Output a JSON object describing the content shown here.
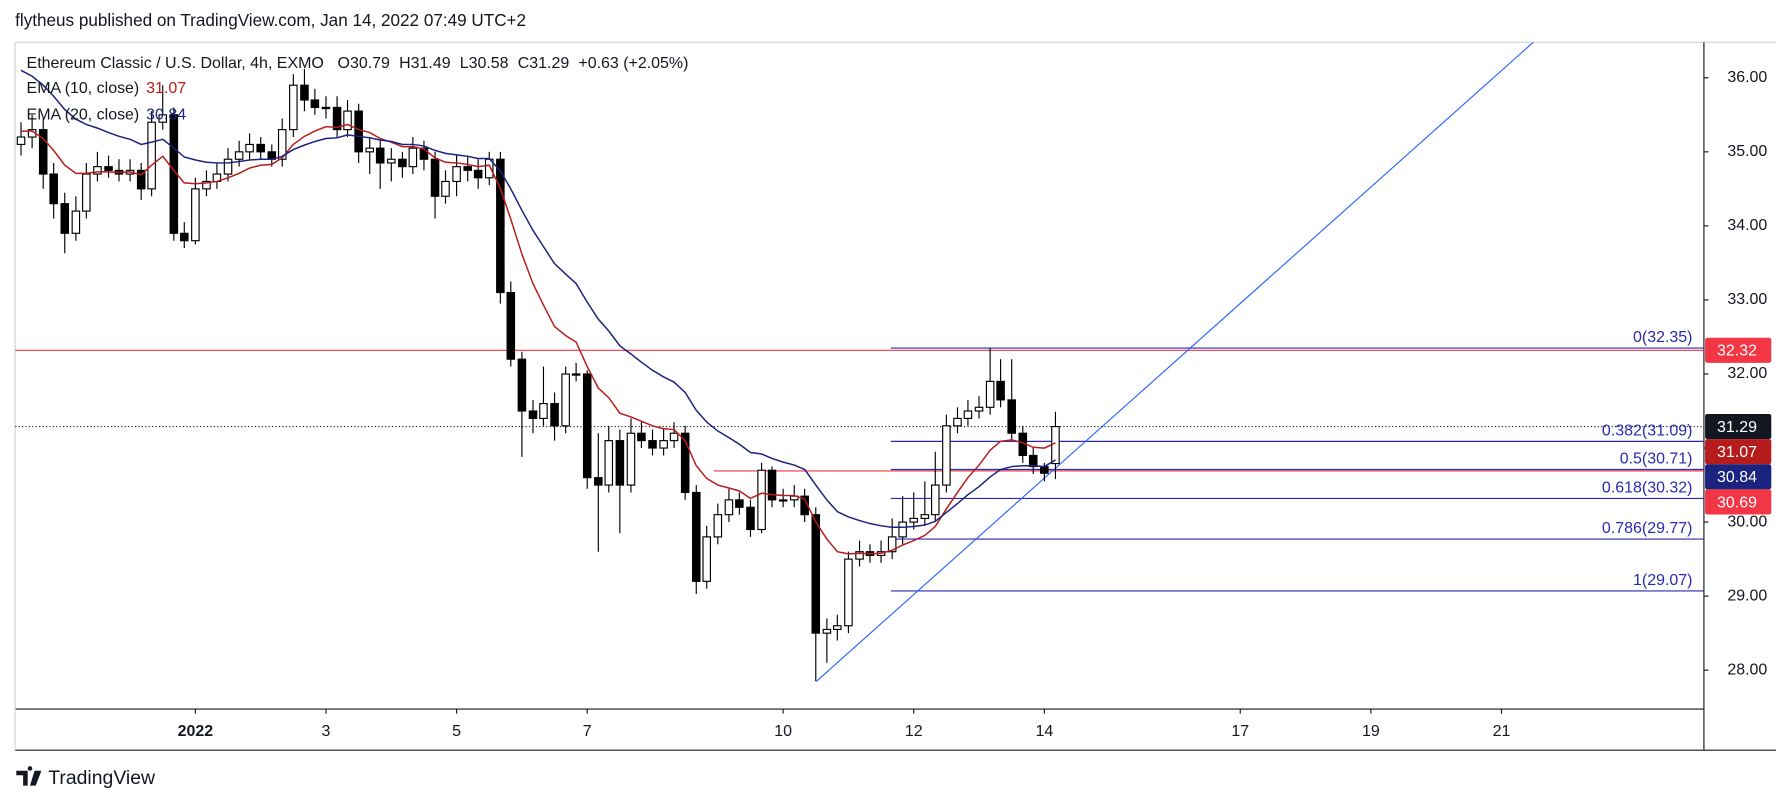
{
  "header": {
    "text": "flytheus published on TradingView.com, Jan 14, 2022 07:49 UTC+2"
  },
  "footer": {
    "brand": "TradingView"
  },
  "chart_data": {
    "type": "candlestick",
    "title": "Ethereum Classic / U.S. Dollar, 4h, EXMO",
    "ohlc_letters": [
      "O",
      "H",
      "L",
      "C"
    ],
    "change": "+0.63 (+2.05%)",
    "up_color": "#ffffff",
    "down_color": "#000000",
    "wick_color": "#000000",
    "last_price_color": "#131722",
    "x": [
      -1.67,
      -1.5,
      -1.33,
      -1.17,
      -1,
      -0.83,
      -0.67,
      -0.5,
      -0.33,
      -0.17,
      0,
      0.17,
      0.33,
      0.5,
      0.67,
      0.83,
      1,
      1.17,
      1.33,
      1.5,
      1.67,
      1.83,
      2,
      2.17,
      2.33,
      2.5,
      2.67,
      2.83,
      3,
      3.17,
      3.33,
      3.5,
      3.67,
      3.83,
      4,
      4.17,
      4.33,
      4.5,
      4.67,
      4.83,
      5,
      5.17,
      5.33,
      5.5,
      5.67,
      5.83,
      6,
      6.17,
      6.33,
      6.5,
      6.67,
      6.83,
      7,
      7.17,
      7.33,
      7.5,
      7.67,
      7.83,
      8,
      8.17,
      8.33,
      8.5,
      8.67,
      8.83,
      9,
      9.17,
      9.33,
      9.5,
      9.67,
      9.83,
      10,
      10.17,
      10.33,
      10.5,
      10.67,
      10.83,
      11,
      11.17,
      11.33,
      11.5,
      11.67,
      11.83,
      12,
      12.17,
      12.33,
      12.5,
      12.67,
      12.83,
      13,
      13.17,
      13.33,
      13.5,
      13.67,
      13.83,
      14,
      14.17
    ],
    "open": [
      35.1,
      35.2,
      35.3,
      34.7,
      34.3,
      33.9,
      34.2,
      34.7,
      34.8,
      34.75,
      34.7,
      34.75,
      34.5,
      35.4,
      35.5,
      33.9,
      33.8,
      34.5,
      34.6,
      34.7,
      34.9,
      35.0,
      35.1,
      35.0,
      34.9,
      35.3,
      35.9,
      35.7,
      35.6,
      35.6,
      35.3,
      35.55,
      35.0,
      35.05,
      34.85,
      34.9,
      34.8,
      35.05,
      34.9,
      34.4,
      34.6,
      34.8,
      34.75,
      34.65,
      34.9,
      33.1,
      32.2,
      31.5,
      31.4,
      31.6,
      31.3,
      32.0,
      32.0,
      30.6,
      30.5,
      31.1,
      30.5,
      31.2,
      31.1,
      31.0,
      31.1,
      31.2,
      30.4,
      29.2,
      29.8,
      30.1,
      30.3,
      30.2,
      29.9,
      30.7,
      30.3,
      30.3,
      30.35,
      30.1,
      28.5,
      28.55,
      28.6,
      29.5,
      29.6,
      29.55,
      29.6,
      29.8,
      30.0,
      30.05,
      30.1,
      30.5,
      31.3,
      31.4,
      31.5,
      31.55,
      31.9,
      31.65,
      31.2,
      30.9,
      30.75,
      30.79
    ],
    "high": [
      35.4,
      35.5,
      35.45,
      34.85,
      34.45,
      34.4,
      34.85,
      35.0,
      34.95,
      34.9,
      34.9,
      34.85,
      35.55,
      35.9,
      35.6,
      34.05,
      34.65,
      34.75,
      34.85,
      35.05,
      35.15,
      35.25,
      35.2,
      35.1,
      35.45,
      36.05,
      36.12,
      35.85,
      35.75,
      35.75,
      35.7,
      35.65,
      35.2,
      35.15,
      35.05,
      35.0,
      35.2,
      35.15,
      35.0,
      34.75,
      34.95,
      34.95,
      34.9,
      35.0,
      35.0,
      33.25,
      32.3,
      31.65,
      32.1,
      31.75,
      32.1,
      32.15,
      32.05,
      31.2,
      31.3,
      31.25,
      31.4,
      31.35,
      31.25,
      31.25,
      31.35,
      31.3,
      30.5,
      29.95,
      30.25,
      30.45,
      30.4,
      30.3,
      30.8,
      30.75,
      30.45,
      30.5,
      30.45,
      30.2,
      28.7,
      28.75,
      29.6,
      29.75,
      29.7,
      29.75,
      30.05,
      30.35,
      30.4,
      30.55,
      30.95,
      31.45,
      31.55,
      31.65,
      31.7,
      32.35,
      32.2,
      32.2,
      31.3,
      31.0,
      30.8,
      31.49
    ],
    "low": [
      34.95,
      35.05,
      34.5,
      34.1,
      33.63,
      33.8,
      34.1,
      34.6,
      34.65,
      34.6,
      34.6,
      34.35,
      34.4,
      35.3,
      33.8,
      33.7,
      33.75,
      34.4,
      34.5,
      34.6,
      34.8,
      34.9,
      34.9,
      34.8,
      34.8,
      35.2,
      35.55,
      35.5,
      35.45,
      35.2,
      35.2,
      34.85,
      34.7,
      34.5,
      34.6,
      34.65,
      34.7,
      34.75,
      34.1,
      34.3,
      34.4,
      34.6,
      34.5,
      34.55,
      32.95,
      32.1,
      30.88,
      31.2,
      31.3,
      31.1,
      31.2,
      31.9,
      30.45,
      29.6,
      30.4,
      29.85,
      30.4,
      31.0,
      30.9,
      30.9,
      31.0,
      30.3,
      29.03,
      29.1,
      29.7,
      30.0,
      30.1,
      29.8,
      29.85,
      30.2,
      30.2,
      30.2,
      30.0,
      27.85,
      28.1,
      28.4,
      28.5,
      29.4,
      29.45,
      29.45,
      29.5,
      29.7,
      29.9,
      29.95,
      30.0,
      30.4,
      31.2,
      31.3,
      31.4,
      31.45,
      31.55,
      31.1,
      30.8,
      30.65,
      30.55,
      30.58
    ],
    "close": [
      35.2,
      35.3,
      34.7,
      34.3,
      33.9,
      34.2,
      34.7,
      34.8,
      34.75,
      34.7,
      34.75,
      34.5,
      35.4,
      35.5,
      33.9,
      33.8,
      34.5,
      34.6,
      34.7,
      34.9,
      35.0,
      35.1,
      35.0,
      34.9,
      35.3,
      35.9,
      35.7,
      35.6,
      35.6,
      35.3,
      35.55,
      35.0,
      35.05,
      34.85,
      34.9,
      34.8,
      35.05,
      34.9,
      34.4,
      34.6,
      34.8,
      34.75,
      34.65,
      34.9,
      33.1,
      32.2,
      31.5,
      31.4,
      31.6,
      31.3,
      32.0,
      32.0,
      30.6,
      30.5,
      31.1,
      30.5,
      31.2,
      31.1,
      31.0,
      31.1,
      31.2,
      30.4,
      29.2,
      29.8,
      30.1,
      30.3,
      30.2,
      29.9,
      30.7,
      30.3,
      30.3,
      30.35,
      30.1,
      28.5,
      28.55,
      28.6,
      29.5,
      29.6,
      29.55,
      29.6,
      29.8,
      30.0,
      30.05,
      30.1,
      30.5,
      31.3,
      31.4,
      31.5,
      31.55,
      31.9,
      31.65,
      31.2,
      30.9,
      30.75,
      30.66,
      31.29
    ],
    "series": [
      {
        "name": "EMA (10, close)",
        "color": "#b71c1c",
        "values": [
          35.28,
          35.28,
          35.18,
          35.02,
          34.82,
          34.71,
          34.71,
          34.73,
          34.73,
          34.72,
          34.73,
          34.69,
          34.82,
          34.94,
          34.75,
          34.58,
          34.57,
          34.58,
          34.6,
          34.65,
          34.71,
          34.78,
          34.82,
          34.83,
          34.92,
          35.1,
          35.21,
          35.28,
          35.34,
          35.33,
          35.37,
          35.3,
          35.26,
          35.18,
          35.13,
          35.07,
          35.07,
          35.04,
          34.92,
          34.86,
          34.85,
          34.83,
          34.8,
          34.82,
          34.51,
          34.09,
          33.62,
          33.22,
          32.93,
          32.64,
          32.52,
          32.43,
          32.1,
          31.81,
          31.68,
          31.47,
          31.42,
          31.36,
          31.3,
          31.26,
          31.25,
          31.1,
          30.76,
          30.59,
          30.5,
          30.46,
          30.42,
          30.32,
          30.39,
          30.37,
          30.36,
          30.36,
          30.31,
          30.0,
          29.77,
          29.6,
          29.57,
          29.58,
          29.57,
          29.58,
          29.62,
          29.69,
          29.75,
          29.82,
          29.94,
          30.18,
          30.4,
          30.6,
          30.77,
          30.97,
          31.09,
          31.11,
          31.07,
          31.01,
          31.0,
          31.07
        ]
      },
      {
        "name": "EMA (20, close)",
        "color": "#1a237e",
        "values": [
          36.1,
          36.02,
          35.9,
          35.75,
          35.57,
          35.44,
          35.37,
          35.32,
          35.26,
          35.21,
          35.17,
          35.1,
          35.13,
          35.17,
          35.05,
          34.93,
          34.89,
          34.86,
          34.85,
          34.85,
          34.87,
          34.89,
          34.9,
          34.9,
          34.94,
          35.03,
          35.09,
          35.14,
          35.18,
          35.19,
          35.23,
          35.21,
          35.19,
          35.16,
          35.14,
          35.1,
          35.1,
          35.08,
          35.02,
          34.98,
          34.96,
          34.94,
          34.91,
          34.91,
          34.74,
          34.5,
          34.21,
          33.94,
          33.72,
          33.49,
          33.35,
          33.22,
          32.97,
          32.74,
          32.58,
          32.38,
          32.27,
          32.16,
          32.05,
          31.96,
          31.89,
          31.75,
          31.51,
          31.35,
          31.23,
          31.14,
          31.05,
          30.94,
          30.92,
          30.86,
          30.81,
          30.77,
          30.71,
          30.5,
          30.3,
          30.14,
          30.07,
          30.02,
          29.98,
          29.95,
          29.93,
          29.93,
          29.94,
          29.96,
          30.01,
          30.13,
          30.25,
          30.37,
          30.48,
          30.61,
          30.71,
          30.75,
          30.76,
          30.76,
          30.75,
          30.84
        ]
      }
    ],
    "hlines": [
      {
        "value": 32.32,
        "color": "#f23645",
        "x_start": -1.76
      },
      {
        "value": 30.69,
        "color": "#f23645",
        "x_start": 8.94
      }
    ],
    "trendline": {
      "x": [
        10.51,
        21.5
      ],
      "y": [
        27.85,
        36.49
      ],
      "color": "#2962ff"
    },
    "fib": {
      "x_start": 11.65,
      "color": "#2a2ab0",
      "levels": [
        {
          "label": "0(32.35)",
          "price": 32.35
        },
        {
          "label": "0.382(31.09)",
          "price": 31.09
        },
        {
          "label": "0.5(30.71)",
          "price": 30.71
        },
        {
          "label": "0.618(30.32)",
          "price": 30.32
        },
        {
          "label": "0.786(29.77)",
          "price": 29.77
        },
        {
          "label": "1(29.07)",
          "price": 29.07
        }
      ]
    },
    "xlim": [
      -1.76,
      24.1
    ],
    "xticks": [
      {
        "value": 1,
        "label": "2022"
      },
      3,
      5,
      7,
      10,
      12,
      14,
      17,
      19,
      21
    ],
    "ylim": [
      27.49,
      36.48
    ],
    "yticks": [
      {
        "value": 28,
        "label": "28.00"
      },
      {
        "value": 29,
        "label": "29.00"
      },
      {
        "value": 30,
        "label": "30.00"
      },
      {
        "value": 31,
        "label": "31.00"
      },
      {
        "value": 32,
        "label": "32.00"
      },
      {
        "value": 33,
        "label": "33.00"
      },
      {
        "value": 34,
        "label": "34.00"
      },
      {
        "value": 35,
        "label": "35.00"
      },
      {
        "value": 36,
        "label": "36.00"
      }
    ]
  }
}
